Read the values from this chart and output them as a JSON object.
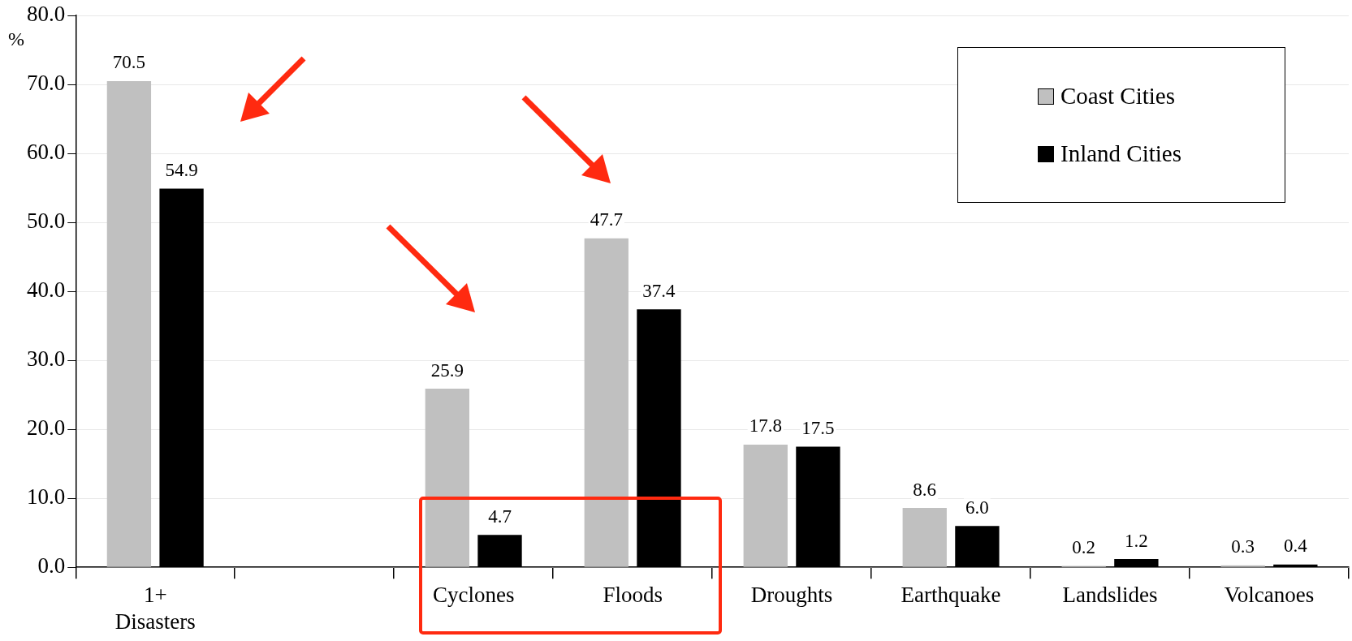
{
  "chart_data": {
    "type": "bar",
    "ylabel": "%",
    "categories": [
      "1+ Disasters",
      null,
      "Cyclones",
      "Floods",
      "Droughts",
      "Earthquake",
      "Landslides",
      "Volcanoes"
    ],
    "series": [
      {
        "name": "Coast Cities",
        "color": "#c0c0c0",
        "values": [
          70.5,
          null,
          25.9,
          47.7,
          17.8,
          8.6,
          0.2,
          0.3
        ],
        "value_labels": [
          "70.5",
          null,
          "25.9",
          "47.7",
          "17.8",
          "8.6",
          "0.2",
          "0.3"
        ]
      },
      {
        "name": "Inland Cities",
        "color": "#000000",
        "values": [
          54.9,
          null,
          4.7,
          37.4,
          17.5,
          6.0,
          1.2,
          0.4
        ],
        "value_labels": [
          "54.9",
          null,
          "4.7",
          "37.4",
          "17.5",
          "6.0",
          "1.2",
          "0.4"
        ]
      }
    ],
    "ylim": [
      0,
      80
    ],
    "yticks": [
      {
        "value": 0,
        "label": "0.0"
      },
      {
        "value": 10,
        "label": "10.0"
      },
      {
        "value": 20,
        "label": "20.0"
      },
      {
        "value": 30,
        "label": "30.0"
      },
      {
        "value": 40,
        "label": "40.0"
      },
      {
        "value": 50,
        "label": "50.0"
      },
      {
        "value": 60,
        "label": "60.0"
      },
      {
        "value": 70,
        "label": "70.0"
      },
      {
        "value": 80,
        "label": "80.0"
      }
    ],
    "grid": "y",
    "legend": "top right"
  }
}
